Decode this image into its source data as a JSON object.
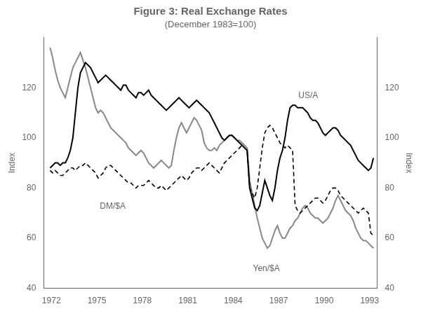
{
  "chart_data": {
    "type": "line",
    "title": "Figure 3: Real Exchange Rates",
    "subtitle": "(December 1983=100)",
    "ylabel": "Index",
    "y2label": "Index",
    "xlim": [
      1971.5,
      1993.5
    ],
    "xticks": [
      1972,
      1975,
      1978,
      1981,
      1984,
      1987,
      1990,
      1993
    ],
    "ylim": [
      40,
      140
    ],
    "yticks": [
      40,
      60,
      80,
      100,
      120
    ],
    "y2lim": [
      40,
      140
    ],
    "y2ticks": [
      40,
      60,
      80,
      100,
      120
    ],
    "grid": false,
    "annotations": [
      {
        "text": "US/A",
        "x": 1988.3,
        "y": 115
      },
      {
        "text": "DM/$A",
        "x": 1975.2,
        "y": 71
      },
      {
        "text": "Yen/$A",
        "x": 1985.3,
        "y": 46
      }
    ],
    "x": [
      1971.917,
      1972.083,
      1972.25,
      1972.417,
      1972.583,
      1972.75,
      1972.917,
      1973.083,
      1973.25,
      1973.417,
      1973.583,
      1973.75,
      1973.917,
      1974.083,
      1974.25,
      1974.417,
      1974.583,
      1974.75,
      1974.917,
      1975.083,
      1975.25,
      1975.417,
      1975.583,
      1975.75,
      1975.917,
      1976.083,
      1976.25,
      1976.417,
      1976.583,
      1976.75,
      1976.917,
      1977.083,
      1977.25,
      1977.417,
      1977.583,
      1977.75,
      1977.917,
      1978.083,
      1978.25,
      1978.417,
      1978.583,
      1978.75,
      1978.917,
      1979.083,
      1979.25,
      1979.417,
      1979.583,
      1979.75,
      1979.917,
      1980.083,
      1980.25,
      1980.417,
      1980.583,
      1980.75,
      1980.917,
      1981.083,
      1981.25,
      1981.417,
      1981.583,
      1981.75,
      1981.917,
      1982.083,
      1982.25,
      1982.417,
      1982.583,
      1982.75,
      1982.917,
      1983.083,
      1983.25,
      1983.417,
      1983.583,
      1983.75,
      1983.917,
      1984.083,
      1984.25,
      1984.417,
      1984.583,
      1984.75,
      1984.917,
      1985.083,
      1985.25,
      1985.417,
      1985.583,
      1985.75,
      1985.917,
      1986.083,
      1986.25,
      1986.417,
      1986.583,
      1986.75,
      1986.917,
      1987.083,
      1987.25,
      1987.417,
      1987.583,
      1987.75,
      1987.917,
      1988.083,
      1988.25,
      1988.417,
      1988.583,
      1988.75,
      1988.917,
      1989.083,
      1989.25,
      1989.417,
      1989.583,
      1989.75,
      1989.917,
      1990.083,
      1990.25,
      1990.417,
      1990.583,
      1990.75,
      1990.917,
      1991.083,
      1991.25,
      1991.417,
      1991.583,
      1991.75,
      1991.917,
      1992.083,
      1992.25,
      1992.417,
      1992.583,
      1992.75,
      1992.917,
      1993.083,
      1993.25
    ],
    "series": [
      {
        "color": "#888888",
        "line_style": "solid",
        "values": [
          136,
          132,
          127,
          123,
          120,
          118,
          116,
          120,
          124,
          128,
          130,
          132,
          134,
          131,
          128,
          124,
          120,
          116,
          112,
          110,
          111,
          110,
          108,
          106,
          104,
          103,
          102,
          101,
          100,
          99,
          98,
          96,
          95,
          94,
          93,
          94,
          95,
          94,
          92,
          90,
          89,
          88,
          89,
          90,
          91,
          90,
          89,
          88,
          89,
          95,
          100,
          104,
          106,
          104,
          102,
          104,
          106,
          108,
          107,
          105,
          103,
          98,
          96,
          95,
          95,
          96,
          95,
          97,
          98,
          99,
          100,
          101,
          101,
          100,
          99,
          99,
          98,
          97,
          96,
          83,
          78,
          73,
          68,
          64,
          60,
          58,
          56,
          57,
          60,
          63,
          65,
          62,
          60,
          60,
          62,
          64,
          65,
          67,
          68,
          70,
          72,
          73,
          72,
          70,
          69,
          68,
          68,
          67,
          66,
          67,
          68,
          70,
          72,
          75,
          77,
          75,
          73,
          71,
          70,
          69,
          67,
          64,
          62,
          60,
          59,
          59,
          58,
          57,
          56
        ]
      },
      {
        "color": "#000000",
        "line_style": "dashed",
        "values": [
          87,
          86,
          87,
          86,
          85,
          85,
          86,
          87,
          88,
          88,
          87,
          88,
          89,
          89,
          90,
          89,
          88,
          87,
          86,
          84,
          85,
          86,
          88,
          89,
          89,
          88,
          87,
          86,
          85,
          84,
          83,
          82,
          82,
          81,
          80,
          81,
          81,
          81,
          82,
          83,
          82,
          81,
          80,
          80,
          81,
          80,
          79,
          80,
          81,
          82,
          83,
          84,
          85,
          84,
          83,
          84,
          86,
          87,
          88,
          88,
          87,
          88,
          89,
          90,
          89,
          88,
          87,
          86,
          88,
          90,
          91,
          92,
          93,
          94,
          95,
          96,
          97,
          96,
          95,
          80,
          78,
          76,
          80,
          88,
          96,
          102,
          104,
          105,
          104,
          102,
          100,
          98,
          97,
          96,
          97,
          96,
          95,
          73,
          71,
          70,
          71,
          72,
          73,
          74,
          75,
          76,
          76,
          75,
          74,
          75,
          77,
          79,
          80,
          80,
          79,
          77,
          76,
          75,
          74,
          73,
          72,
          71,
          70,
          71,
          72,
          71,
          70,
          62,
          61
        ]
      },
      {
        "color": "#000000",
        "line_style": "solid",
        "values": [
          88,
          89,
          90,
          90,
          89,
          90,
          90,
          92,
          95,
          100,
          110,
          120,
          126,
          128,
          130,
          129,
          128,
          126,
          124,
          122,
          123,
          124,
          125,
          124,
          123,
          122,
          121,
          120,
          119,
          121,
          121,
          119,
          118,
          117,
          116,
          118,
          118,
          117,
          118,
          119,
          117,
          116,
          115,
          114,
          113,
          112,
          111,
          112,
          113,
          114,
          115,
          116,
          115,
          114,
          113,
          112,
          113,
          114,
          115,
          114,
          113,
          112,
          111,
          110,
          108,
          106,
          104,
          102,
          100,
          99,
          100,
          101,
          101,
          100,
          99,
          98,
          97,
          96,
          95,
          80,
          76,
          72,
          71,
          73,
          78,
          83,
          80,
          77,
          75,
          80,
          87,
          92,
          95,
          100,
          107,
          112,
          113,
          113,
          112,
          112,
          112,
          111,
          110,
          108,
          107,
          107,
          106,
          104,
          102,
          101,
          102,
          103,
          104,
          104,
          103,
          101,
          100,
          99,
          98,
          97,
          95,
          93,
          91,
          90,
          89,
          88,
          87,
          88,
          92
        ]
      }
    ]
  }
}
